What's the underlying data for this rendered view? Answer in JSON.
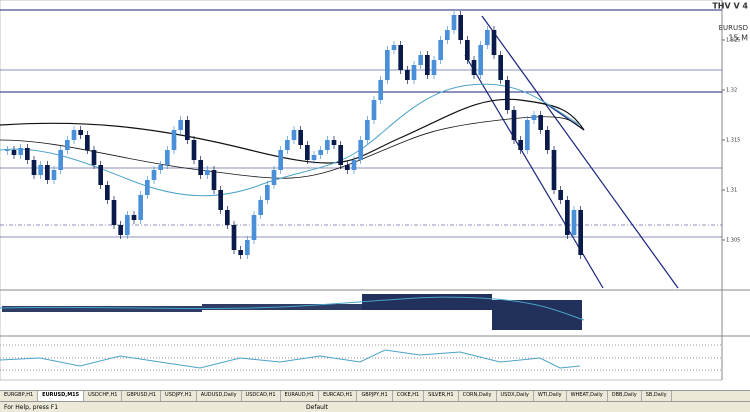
{
  "indicator_name": "THV V 4",
  "symbol": "EURUSD",
  "timeframe": "15 M",
  "chart": {
    "type": "candlestick",
    "closes": [
      1.314,
      1.3135,
      1.3142,
      1.313,
      1.3115,
      1.3125,
      1.311,
      1.312,
      1.314,
      1.315,
      1.316,
      1.3155,
      1.314,
      1.3125,
      1.3105,
      1.309,
      1.3065,
      1.3055,
      1.3075,
      1.307,
      1.3095,
      1.311,
      1.312,
      1.3125,
      1.314,
      1.316,
      1.317,
      1.315,
      1.313,
      1.3115,
      1.312,
      1.31,
      1.308,
      1.3065,
      1.304,
      1.3035,
      1.305,
      1.3075,
      1.309,
      1.3105,
      1.312,
      1.314,
      1.315,
      1.316,
      1.3145,
      1.313,
      1.3135,
      1.314,
      1.315,
      1.3145,
      1.3125,
      1.312,
      1.313,
      1.315,
      1.317,
      1.319,
      1.321,
      1.324,
      1.3245,
      1.322,
      1.321,
      1.3225,
      1.3235,
      1.3215,
      1.323,
      1.325,
      1.326,
      1.3275,
      1.325,
      1.323,
      1.3215,
      1.3245,
      1.326,
      1.3235,
      1.321,
      1.318,
      1.315,
      1.314,
      1.317,
      1.3175,
      1.316,
      1.314,
      1.31,
      1.309,
      1.3055,
      1.308,
      1.3035
    ],
    "ylim": [
      1.3,
      1.3285
    ],
    "yticks": [
      1.305,
      1.31,
      1.315,
      1.32,
      1.325
    ],
    "bull_color": "#4a90d9",
    "bear_color": "#0a1a4a"
  },
  "tabs": [
    "EURGBP,H1",
    "EURUSD,M15",
    "USDCHF,H1",
    "GBPUSD,H1",
    "USDJPY,H1",
    "AUDUSD,Daily",
    "USDCAD,H1",
    "EURAUD,H1",
    "EURCAD,H1",
    "GBPJPY,H1",
    "COKE,H1",
    "SILVER,H1",
    "CORN,Daily",
    "USDX,Daily",
    "WTI,Daily",
    "WHEAT,Daily",
    "DBB,Daily",
    "SB,Daily"
  ],
  "status": {
    "help": "For Help, press F1",
    "profile": "Default"
  }
}
